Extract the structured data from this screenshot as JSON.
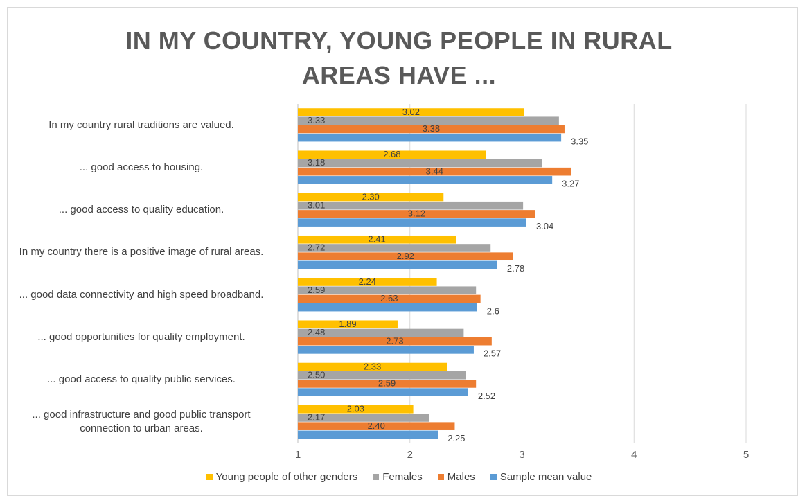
{
  "chart_data": {
    "type": "bar",
    "orientation": "horizontal",
    "title": "IN MY COUNTRY, YOUNG PEOPLE IN RURAL AREAS HAVE ...",
    "categories": [
      "In my country rural traditions are valued.",
      "... good access to housing.",
      "... good access to quality education.",
      "In my country there is a positive image of rural areas.",
      "... good data connectivity and high speed broadband.",
      "... good opportunities for quality employment.",
      "... good access to quality public services.",
      "... good infrastructure and good public transport connection to urban areas."
    ],
    "series": [
      {
        "name": "Young people of other genders",
        "color": "#ffc000",
        "values": [
          3.02,
          2.68,
          2.3,
          2.41,
          2.24,
          1.89,
          2.33,
          2.03
        ],
        "value_labels": [
          "3.02",
          "2.68",
          "2.30",
          "2.41",
          "2.24",
          "1.89",
          "2.33",
          "2.03"
        ]
      },
      {
        "name": "Females",
        "color": "#a5a5a5",
        "values": [
          3.33,
          3.18,
          3.01,
          2.72,
          2.59,
          2.48,
          2.5,
          2.17
        ],
        "value_labels": [
          "3.33",
          "3.18",
          "3.01",
          "2.72",
          "2.59",
          "2.48",
          "2.50",
          "2.17"
        ]
      },
      {
        "name": "Males",
        "color": "#ed7d31",
        "values": [
          3.38,
          3.44,
          3.12,
          2.92,
          2.63,
          2.73,
          2.59,
          2.4
        ],
        "value_labels": [
          "3.38",
          "3.44",
          "3.12",
          "2.92",
          "2.63",
          "2.73",
          "2.59",
          "2.40"
        ]
      },
      {
        "name": "Sample mean value",
        "color": "#5b9bd5",
        "values": [
          3.35,
          3.27,
          3.04,
          2.78,
          2.6,
          2.57,
          2.52,
          2.25
        ],
        "value_labels": [
          "3.35",
          "3.27",
          "3.04",
          "2.78",
          "2.6",
          "2.57",
          "2.52",
          "2.25"
        ]
      }
    ],
    "xlim": [
      1,
      5
    ],
    "xticks": [
      1,
      2,
      3,
      4,
      5
    ],
    "grid": true,
    "legend": "bottom"
  }
}
